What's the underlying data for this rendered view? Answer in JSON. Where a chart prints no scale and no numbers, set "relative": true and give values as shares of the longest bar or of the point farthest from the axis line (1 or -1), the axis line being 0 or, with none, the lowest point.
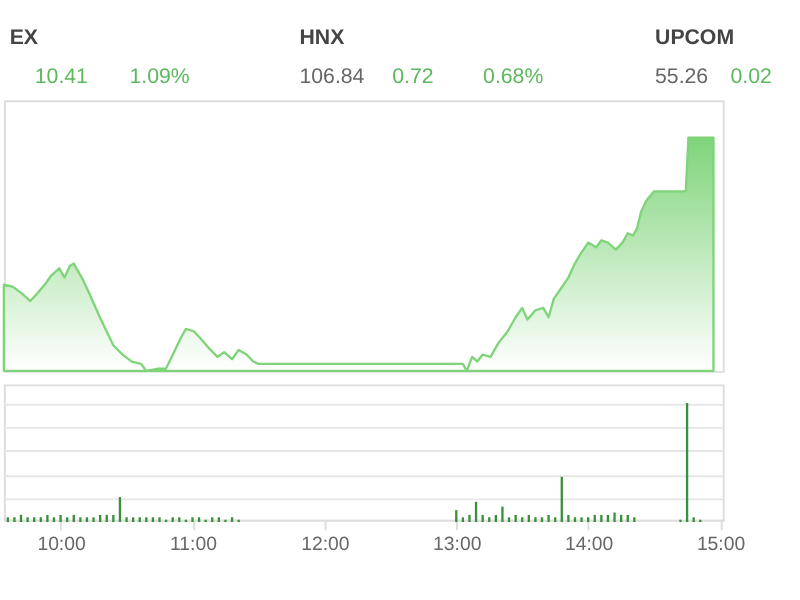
{
  "chart_data": [
    {
      "type": "area",
      "annotations": [
        "EX",
        "10.41",
        "1.09%",
        "HNX",
        "106.84",
        "0.72",
        "0.68%",
        "UPCOM",
        "55.26",
        "0.02"
      ],
      "relative": true,
      "tick_labels": false,
      "xlim": [
        9.57,
        15.02
      ],
      "series": [
        {
          "color": "#7fd47a",
          "x": [
            9.57,
            9.64,
            9.71,
            9.77,
            9.82,
            9.88,
            9.93,
            9.99,
            10.03,
            10.07,
            10.1,
            10.12,
            10.17,
            10.22,
            10.29,
            10.34,
            10.4,
            10.47,
            10.54,
            10.61,
            10.65,
            10.74,
            10.8,
            10.86,
            10.91,
            10.95,
            11.01,
            11.06,
            11.12,
            11.19,
            11.24,
            11.3,
            11.35,
            11.41,
            11.46,
            11.5,
            13.05,
            13.08,
            13.12,
            13.16,
            13.2,
            13.26,
            13.32,
            13.39,
            13.45,
            13.5,
            13.54,
            13.6,
            13.66,
            13.7,
            13.74,
            13.79,
            13.85,
            13.89,
            13.94,
            14.0,
            14.06,
            14.1,
            14.15,
            14.21,
            14.26,
            14.3,
            14.34,
            14.37,
            14.4,
            14.44,
            14.5,
            14.59,
            14.74,
            14.76,
            14.95
          ],
          "values": [
            0.37,
            0.36,
            0.33,
            0.3,
            0.33,
            0.37,
            0.41,
            0.44,
            0.4,
            0.45,
            0.46,
            0.44,
            0.39,
            0.33,
            0.24,
            0.18,
            0.11,
            0.07,
            0.04,
            0.03,
            0,
            0.01,
            0.01,
            0.08,
            0.14,
            0.18,
            0.17,
            0.14,
            0.1,
            0.06,
            0.08,
            0.05,
            0.09,
            0.07,
            0.04,
            0.03,
            0.03,
            0,
            0.06,
            0.04,
            0.07,
            0.06,
            0.12,
            0.17,
            0.23,
            0.27,
            0.22,
            0.26,
            0.27,
            0.23,
            0.31,
            0.35,
            0.4,
            0.45,
            0.5,
            0.55,
            0.53,
            0.56,
            0.55,
            0.52,
            0.55,
            0.59,
            0.58,
            0.61,
            0.68,
            0.73,
            0.77,
            0.77,
            0.77,
            1,
            1
          ]
        }
      ]
    },
    {
      "type": "bar",
      "relative": true,
      "grid": "y",
      "tick_labels": "x",
      "xlim": [
        9.57,
        15.02
      ],
      "xticks": [
        {
          "value": 10,
          "label": "10:00"
        },
        {
          "value": 11,
          "label": "11:00"
        },
        {
          "value": 12,
          "label": "12:00"
        },
        {
          "value": 13,
          "label": "13:00"
        },
        {
          "value": 14,
          "label": "14:00"
        },
        {
          "value": 15,
          "label": "15:00"
        }
      ],
      "series": [
        {
          "color": "#3a8f3a",
          "x": [
            9.6,
            9.65,
            9.7,
            9.75,
            9.8,
            9.85,
            9.9,
            9.95,
            10.0,
            10.05,
            10.1,
            10.15,
            10.2,
            10.25,
            10.3,
            10.35,
            10.4,
            10.45,
            10.5,
            10.55,
            10.6,
            10.65,
            10.7,
            10.75,
            10.8,
            10.85,
            10.9,
            10.95,
            11.0,
            11.05,
            11.1,
            11.15,
            11.2,
            11.25,
            11.3,
            11.35,
            13.0,
            13.05,
            13.1,
            13.15,
            13.2,
            13.25,
            13.3,
            13.35,
            13.4,
            13.45,
            13.5,
            13.55,
            13.6,
            13.65,
            13.7,
            13.75,
            13.8,
            13.85,
            13.9,
            13.95,
            14.0,
            14.05,
            14.1,
            14.15,
            14.2,
            14.25,
            14.3,
            14.35,
            14.7,
            14.75,
            14.8,
            14.85
          ],
          "values": [
            0.04,
            0.04,
            0.06,
            0.04,
            0.04,
            0.04,
            0.06,
            0.04,
            0.06,
            0.04,
            0.06,
            0.04,
            0.04,
            0.04,
            0.06,
            0.06,
            0.06,
            0.21,
            0.04,
            0.04,
            0.04,
            0.04,
            0.04,
            0.04,
            0.02,
            0.04,
            0.04,
            0.02,
            0.04,
            0.04,
            0.02,
            0.04,
            0.04,
            0.02,
            0.04,
            0.02,
            0.1,
            0.04,
            0.06,
            0.17,
            0.06,
            0.04,
            0.06,
            0.13,
            0.04,
            0.06,
            0.04,
            0.06,
            0.04,
            0.04,
            0.06,
            0.04,
            0.38,
            0.06,
            0.04,
            0.04,
            0.04,
            0.06,
            0.06,
            0.06,
            0.08,
            0.06,
            0.06,
            0.04,
            0.02,
            1,
            0.04,
            0.02
          ]
        }
      ]
    }
  ]
}
